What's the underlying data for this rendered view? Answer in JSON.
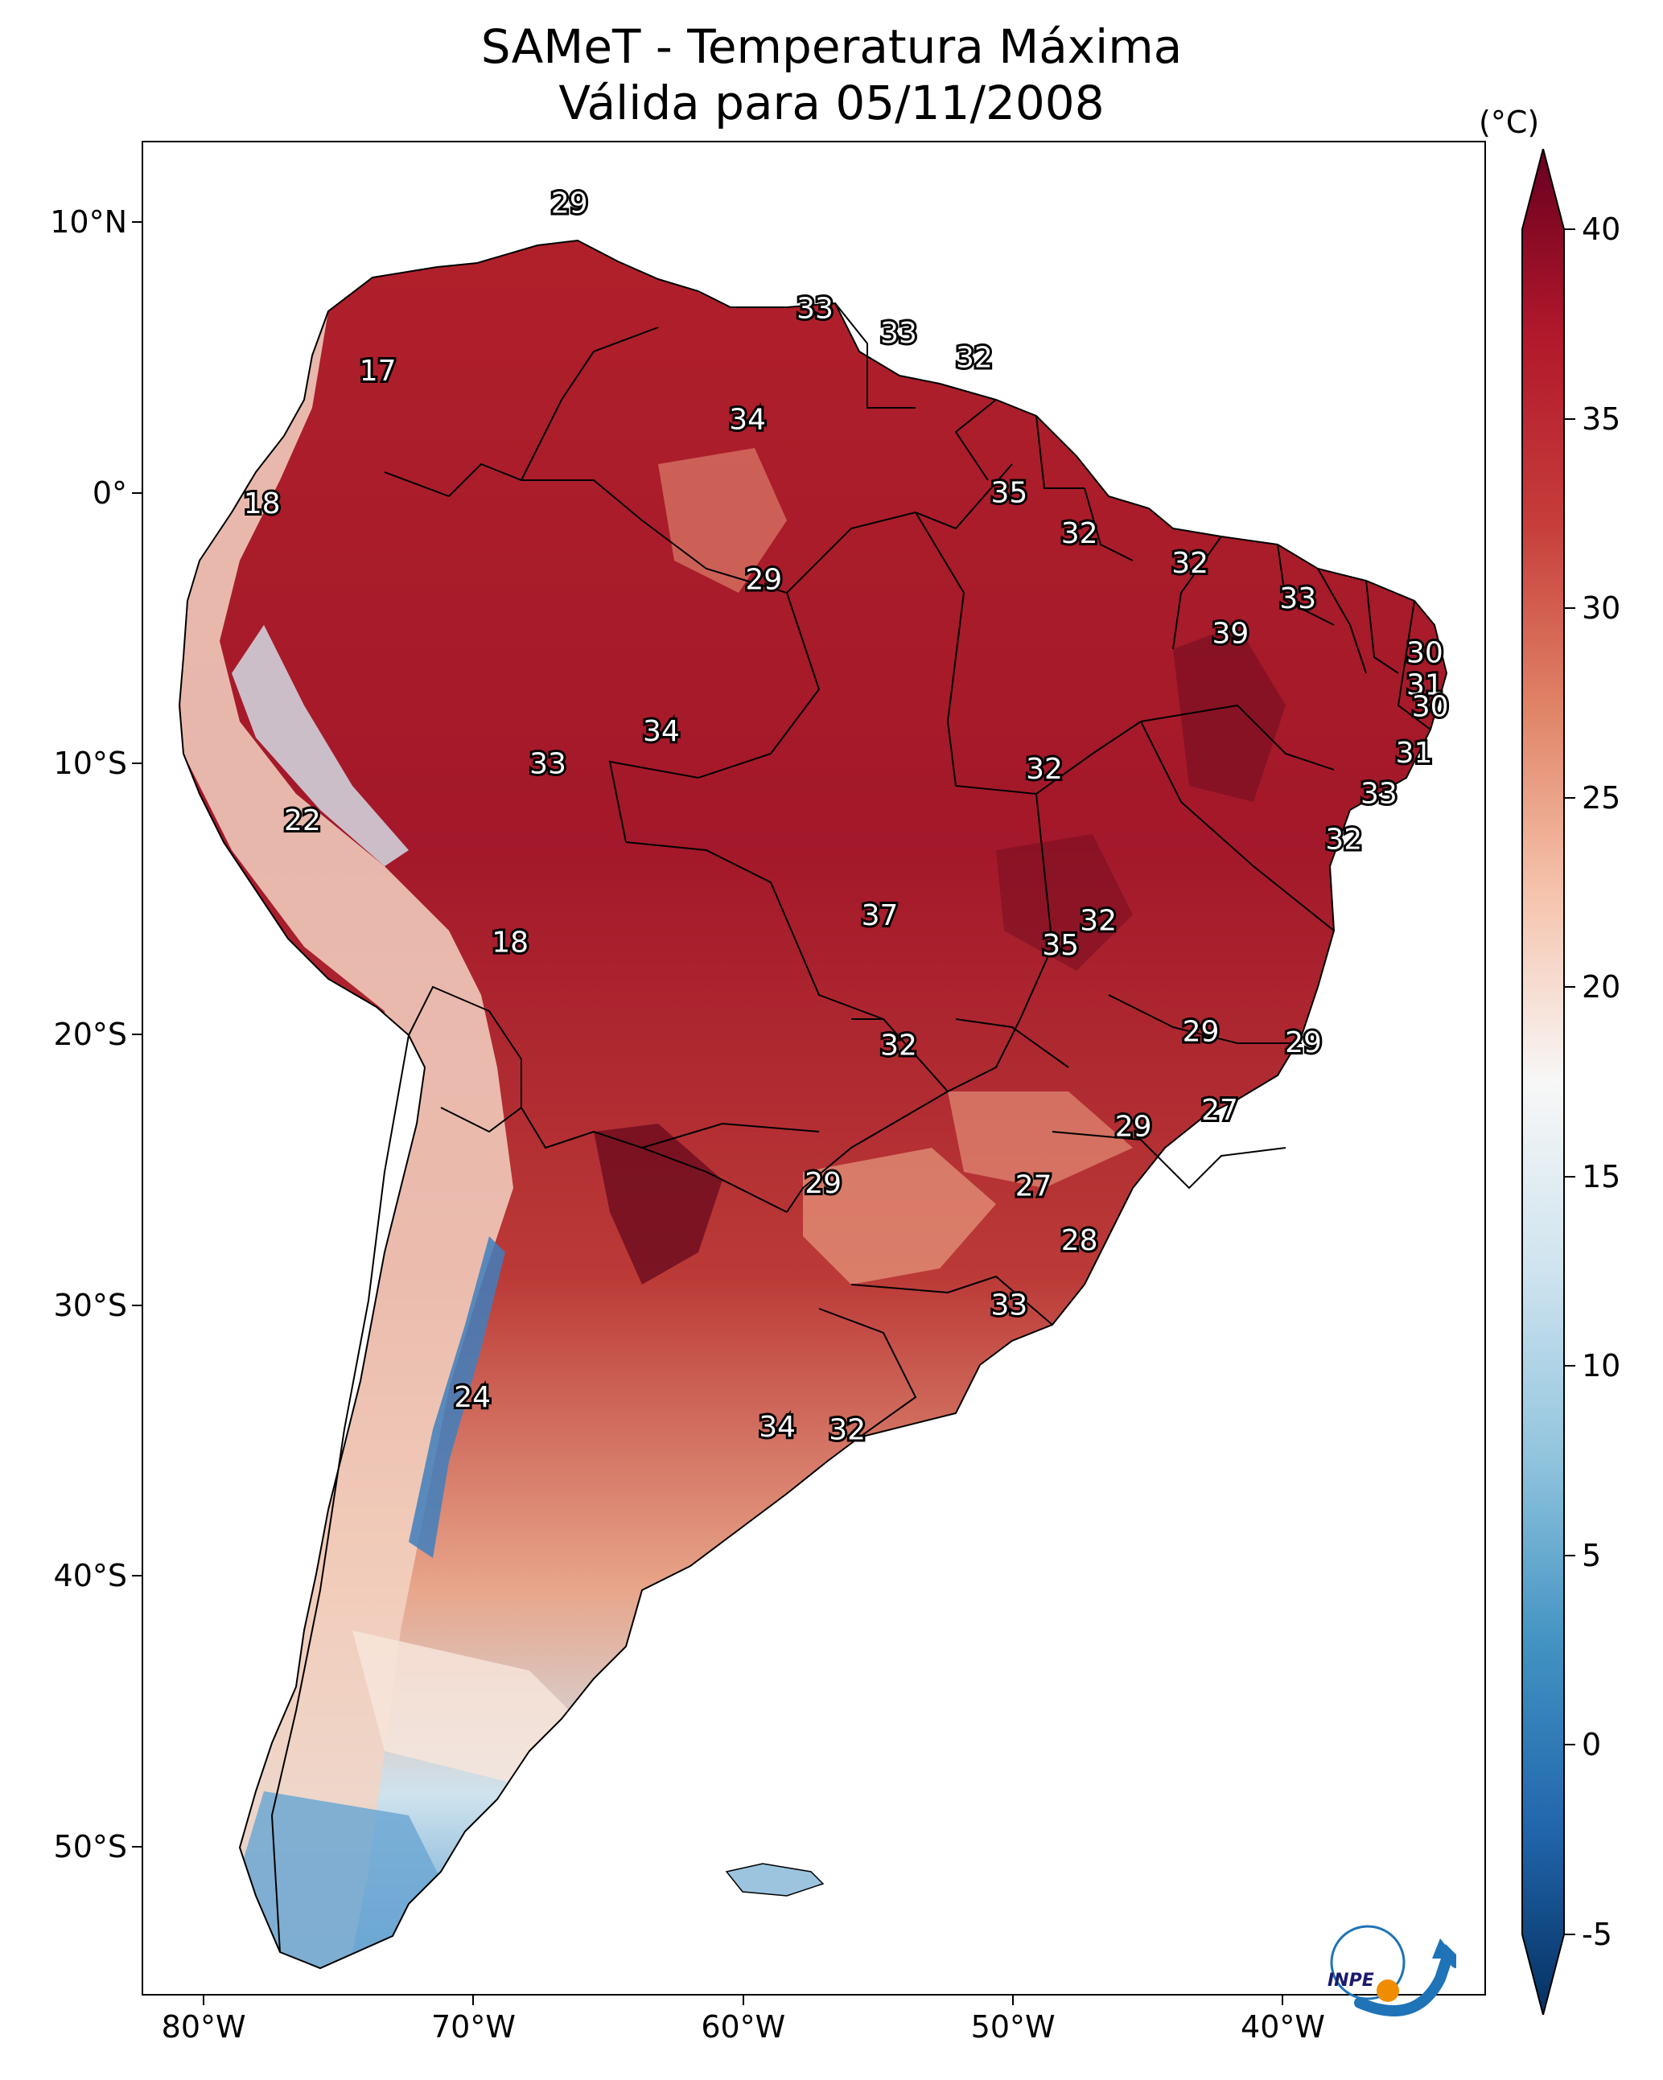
{
  "title_line1": "SAMeT - Temperatura Máxima",
  "title_line2": "Válida para 05/11/2008",
  "colorbar": {
    "units": "(°C)",
    "ticks": [
      "40",
      "35",
      "30",
      "25",
      "20",
      "15",
      "10",
      "5",
      "0",
      "-5"
    ],
    "colors": [
      "#67001f",
      "#b2182b",
      "#d6604d",
      "#f4a582",
      "#fddbc7",
      "#f7f7f7",
      "#d1e5f0",
      "#92c5de",
      "#4393c3",
      "#2166ac",
      "#053061"
    ]
  },
  "axes": {
    "lat_labels": [
      "10°N",
      "0°",
      "10°S",
      "20°S",
      "30°S",
      "40°S",
      "50°S"
    ],
    "lon_labels": [
      "80°W",
      "70°W",
      "60°W",
      "50°W",
      "40°W"
    ]
  },
  "labels": [
    {
      "text": "29",
      "lon": -66.5,
      "lat": 10.7
    },
    {
      "text": "17",
      "lon": -73.6,
      "lat": 4.5
    },
    {
      "text": "33",
      "lon": -57.4,
      "lat": 6.8
    },
    {
      "text": "33",
      "lon": -54.3,
      "lat": 5.9
    },
    {
      "text": "32",
      "lon": -51.5,
      "lat": 5.0
    },
    {
      "text": "34",
      "lon": -59.9,
      "lat": 2.7
    },
    {
      "text": "18",
      "lon": -77.9,
      "lat": -0.4
    },
    {
      "text": "35",
      "lon": -50.2,
      "lat": 0.0
    },
    {
      "text": "32",
      "lon": -47.6,
      "lat": -1.5
    },
    {
      "text": "29",
      "lon": -59.3,
      "lat": -3.2
    },
    {
      "text": "32",
      "lon": -43.5,
      "lat": -2.6
    },
    {
      "text": "33",
      "lon": -39.5,
      "lat": -3.9
    },
    {
      "text": "39",
      "lon": -42.0,
      "lat": -5.2
    },
    {
      "text": "30",
      "lon": -34.8,
      "lat": -5.9
    },
    {
      "text": "31",
      "lon": -34.8,
      "lat": -7.1
    },
    {
      "text": "30",
      "lon": -34.6,
      "lat": -7.9
    },
    {
      "text": "34",
      "lon": -63.1,
      "lat": -8.8
    },
    {
      "text": "33",
      "lon": -67.3,
      "lat": -10.0
    },
    {
      "text": "32",
      "lon": -48.9,
      "lat": -10.2
    },
    {
      "text": "31",
      "lon": -35.2,
      "lat": -9.6
    },
    {
      "text": "33",
      "lon": -36.5,
      "lat": -11.1
    },
    {
      "text": "22",
      "lon": -76.4,
      "lat": -12.1
    },
    {
      "text": "32",
      "lon": -37.8,
      "lat": -12.8
    },
    {
      "text": "37",
      "lon": -55.0,
      "lat": -15.6
    },
    {
      "text": "32",
      "lon": -46.9,
      "lat": -15.8
    },
    {
      "text": "35",
      "lon": -48.3,
      "lat": -16.7
    },
    {
      "text": "18",
      "lon": -68.7,
      "lat": -16.6
    },
    {
      "text": "32",
      "lon": -54.3,
      "lat": -20.4
    },
    {
      "text": "29",
      "lon": -43.1,
      "lat": -19.9
    },
    {
      "text": "29",
      "lon": -39.3,
      "lat": -20.3
    },
    {
      "text": "27",
      "lon": -42.4,
      "lat": -22.8
    },
    {
      "text": "29",
      "lon": -45.6,
      "lat": -23.4
    },
    {
      "text": "29",
      "lon": -57.1,
      "lat": -25.5
    },
    {
      "text": "27",
      "lon": -49.3,
      "lat": -25.6
    },
    {
      "text": "28",
      "lon": -47.6,
      "lat": -27.6
    },
    {
      "text": "33",
      "lon": -50.2,
      "lat": -30.0
    },
    {
      "text": "24",
      "lon": -70.1,
      "lat": -33.4
    },
    {
      "text": "34",
      "lon": -58.8,
      "lat": -34.5
    },
    {
      "text": "32",
      "lon": -56.2,
      "lat": -34.6
    }
  ]
}
